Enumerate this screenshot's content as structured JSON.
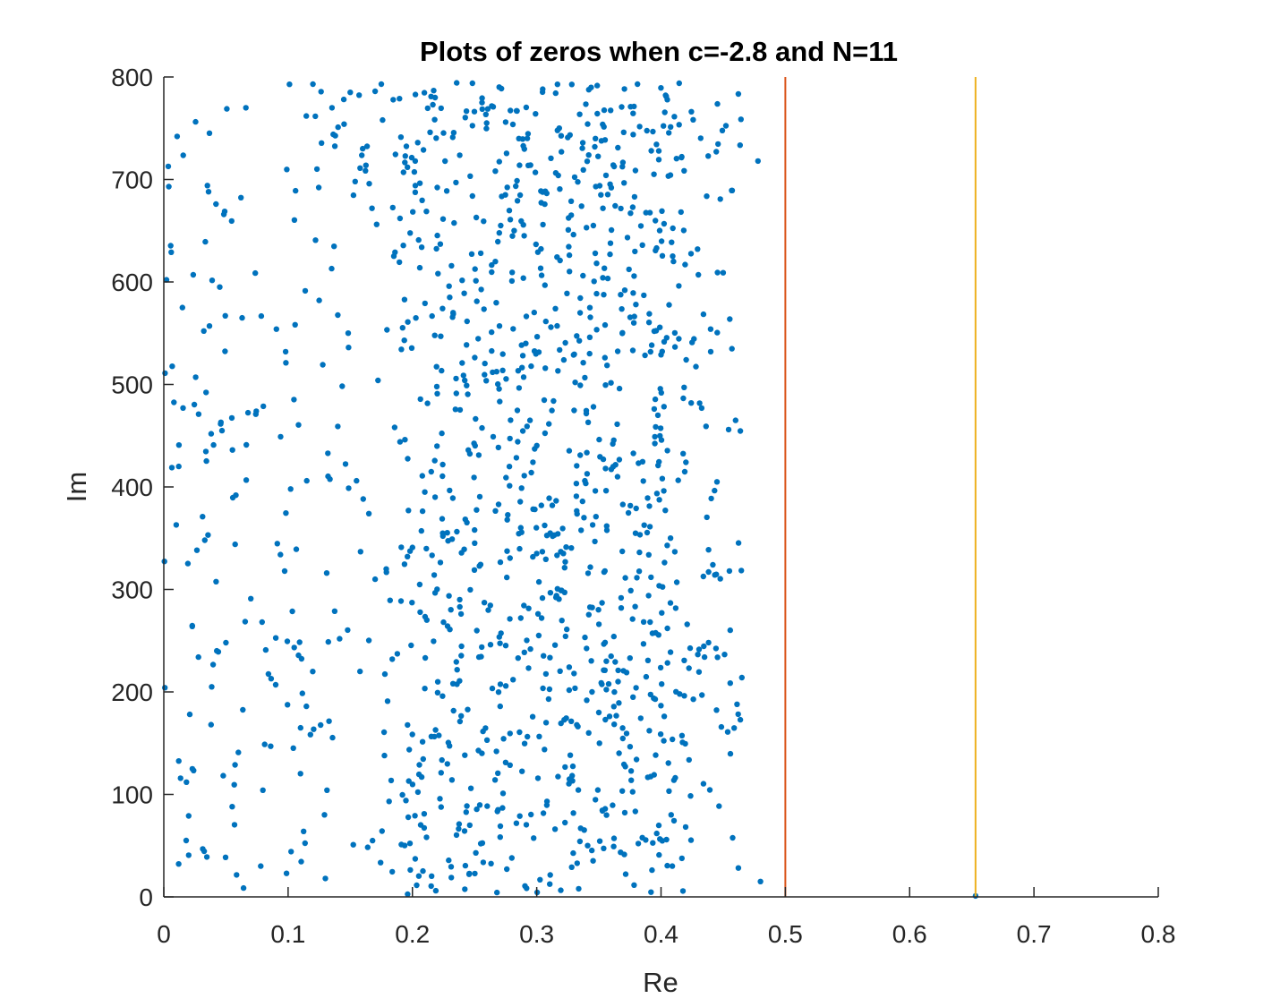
{
  "chart_data": {
    "type": "scatter",
    "title": "Plots of zeros when c=-2.8 and N=11",
    "xlabel": "Re",
    "ylabel": "Im",
    "xlim": [
      0,
      0.8
    ],
    "ylim": [
      0,
      800
    ],
    "xticks": [
      "0",
      "0.1",
      "0.2",
      "0.3",
      "0.4",
      "0.5",
      "0.6",
      "0.7",
      "0.8"
    ],
    "yticks": [
      "0",
      "100",
      "200",
      "300",
      "400",
      "500",
      "600",
      "700",
      "800"
    ],
    "grid": false,
    "legend": "none",
    "axes_box": "left-bottom",
    "colors": {
      "zeros": "#0072BD",
      "line_re_0_5": "#D95319",
      "line_re_0_65": "#EDB120",
      "axis": "#262626"
    },
    "vertical_lines": [
      {
        "x": 0.5,
        "color": "#D95319"
      },
      {
        "x": 0.653,
        "color": "#EDB120"
      }
    ],
    "series": [
      {
        "marker": "dot",
        "color": "#0072BD",
        "note_count": 1200,
        "x": [
          0.001,
          0.004,
          0.006,
          0.01,
          0.012,
          0.015,
          0.018,
          0.02,
          0.023,
          0.028,
          0.033,
          0.036,
          0.038,
          0.04,
          0.042,
          0.045,
          0.05,
          0.055,
          0.058,
          0.06,
          0.063,
          0.066,
          0.07,
          0.074,
          0.078,
          0.082,
          0.086,
          0.09,
          0.094,
          0.098,
          0.102,
          0.106,
          0.11,
          0.115,
          0.12,
          0.125,
          0.13,
          0.135,
          0.14,
          0.145,
          0.15,
          0.155,
          0.16,
          0.165,
          0.17,
          0.175,
          0.18,
          0.186,
          0.19,
          0.196,
          0.2,
          0.205,
          0.21,
          0.215,
          0.22,
          0.225,
          0.23,
          0.235,
          0.24,
          0.245,
          0.25,
          0.255,
          0.26,
          0.265,
          0.27,
          0.275,
          0.28,
          0.285,
          0.29,
          0.295,
          0.3,
          0.305,
          0.31,
          0.315,
          0.32,
          0.325,
          0.33,
          0.335,
          0.34,
          0.345,
          0.35,
          0.355,
          0.36,
          0.365,
          0.37,
          0.375,
          0.38,
          0.385,
          0.39,
          0.395,
          0.4,
          0.405,
          0.41,
          0.415,
          0.42,
          0.425,
          0.43,
          0.435,
          0.44,
          0.445,
          0.45,
          0.455,
          0.46,
          0.465,
          0.478,
          0.48,
          0.653
        ],
        "y": [
          511,
          693,
          629,
          363,
          420,
          575,
          55,
          79,
          125,
          471,
          348,
          688,
          168,
          441,
          676,
          595,
          248,
          88,
          392,
          141,
          565,
          770,
          291,
          471,
          30,
          241,
          147,
          207,
          449,
          532,
          398,
          689,
          165,
          406,
          793,
          582,
          18,
          613,
          459,
          754,
          785,
          406,
          730,
          374,
          786,
          793,
          191,
          629,
          444,
          712,
          341,
          641,
          395,
          781,
          491,
          268,
          585,
          697,
          521,
          436,
          358,
          628,
          153,
          449,
          557,
          756,
          601,
          233,
          411,
          714,
          335,
          656,
          389,
          574,
          299,
          741,
          218,
          431,
          653,
          363,
          266,
          558,
          692,
          410,
          746,
          233,
          379,
          636,
          294,
          449,
          529,
          343,
          620,
          198,
          424,
          541,
          607,
          234,
          532,
          405,
          609,
          318,
          465,
          214,
          718,
          15,
          1
        ]
      }
    ]
  }
}
